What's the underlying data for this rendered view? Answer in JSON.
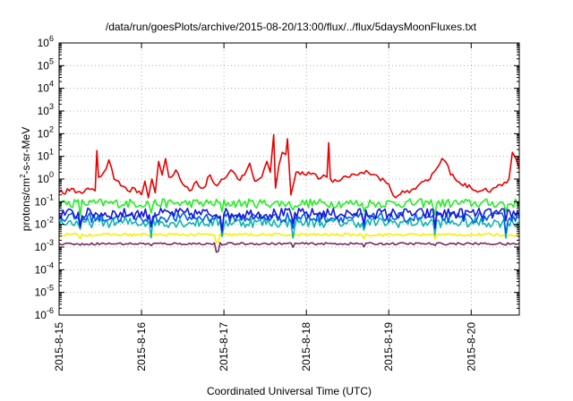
{
  "chart_data": {
    "type": "line",
    "title": "/data/run/goesPlots/archive/2015-08-20/13:00/flux/../flux/5daysMoonFluxes.txt",
    "xlabel": "Coordinated Universal Time (UTC)",
    "ylabel": {
      "pre": "protons/cm",
      "sup": "2",
      "post": "-s-sr-MeV"
    },
    "x_ticks": [
      "2015-8-15",
      "2015-8-16",
      "2015-8-17",
      "2015-8-18",
      "2015-8-19",
      "2015-8-20"
    ],
    "xlim": [
      "2015-08-15 00:00",
      "2015-08-20 14:00"
    ],
    "y_scale": "log",
    "ylim": [
      1e-06,
      1000000.0
    ],
    "y_tick_exponents": [
      -6,
      -5,
      -4,
      -3,
      -2,
      -1,
      0,
      1,
      2,
      3,
      4,
      5,
      6
    ],
    "y_tick_base": "10",
    "grid": true,
    "legend": "none",
    "series": [
      {
        "color": "#e80000",
        "points": [
          [
            "2015-08-15 00:00",
            0.25
          ],
          [
            "2015-08-15 03:00",
            0.3
          ],
          [
            "2015-08-15 06:00",
            0.28
          ],
          [
            "2015-08-15 09:00",
            0.35
          ],
          [
            "2015-08-15 10:30",
            0.3
          ],
          [
            "2015-08-15 11:00",
            18
          ],
          [
            "2015-08-15 11:30",
            1.2
          ],
          [
            "2015-08-15 13:00",
            2
          ],
          [
            "2015-08-15 14:30",
            7
          ],
          [
            "2015-08-15 16:00",
            1.0
          ],
          [
            "2015-08-15 18:00",
            0.5
          ],
          [
            "2015-08-15 20:00",
            0.3
          ],
          [
            "2015-08-15 22:00",
            0.4
          ],
          [
            "2015-08-16 00:00",
            0.2
          ],
          [
            "2015-08-16 01:00",
            0.8
          ],
          [
            "2015-08-16 02:00",
            0.15
          ],
          [
            "2015-08-16 03:00",
            1.0
          ],
          [
            "2015-08-16 04:00",
            0.25
          ],
          [
            "2015-08-16 05:00",
            6
          ],
          [
            "2015-08-16 06:00",
            1.5
          ],
          [
            "2015-08-16 07:00",
            8
          ],
          [
            "2015-08-16 08:00",
            1.2
          ],
          [
            "2015-08-16 10:00",
            2.5
          ],
          [
            "2015-08-16 12:00",
            0.6
          ],
          [
            "2015-08-16 14:00",
            0.3
          ],
          [
            "2015-08-16 16:00",
            0.8
          ],
          [
            "2015-08-16 18:00",
            0.4
          ],
          [
            "2015-08-16 20:00",
            1.5
          ],
          [
            "2015-08-16 22:00",
            0.5
          ],
          [
            "2015-08-17 00:00",
            1.0
          ],
          [
            "2015-08-17 02:00",
            2.5
          ],
          [
            "2015-08-17 04:00",
            1.0
          ],
          [
            "2015-08-17 06:00",
            1.5
          ],
          [
            "2015-08-17 07:30",
            5
          ],
          [
            "2015-08-17 09:00",
            0.8
          ],
          [
            "2015-08-17 11:00",
            1.2
          ],
          [
            "2015-08-17 12:30",
            6
          ],
          [
            "2015-08-17 13:30",
            2
          ],
          [
            "2015-08-17 14:30",
            90
          ],
          [
            "2015-08-17 15:00",
            0.4
          ],
          [
            "2015-08-17 16:00",
            4
          ],
          [
            "2015-08-17 17:00",
            15
          ],
          [
            "2015-08-17 18:00",
            12
          ],
          [
            "2015-08-17 18:30",
            60
          ],
          [
            "2015-08-17 19:30",
            0.2
          ],
          [
            "2015-08-17 21:00",
            2
          ],
          [
            "2015-08-18 00:00",
            1.5
          ],
          [
            "2015-08-18 02:00",
            1.8
          ],
          [
            "2015-08-18 03:30",
            1.0
          ],
          [
            "2015-08-18 05:00",
            1.5
          ],
          [
            "2015-08-18 06:00",
            1.2
          ],
          [
            "2015-08-18 06:30",
            40
          ],
          [
            "2015-08-18 07:00",
            1.0
          ],
          [
            "2015-08-18 09:00",
            0.8
          ],
          [
            "2015-08-18 12:00",
            1.2
          ],
          [
            "2015-08-18 15:00",
            1.5
          ],
          [
            "2015-08-18 18:00",
            2
          ],
          [
            "2015-08-18 21:00",
            1.2
          ],
          [
            "2015-08-19 00:00",
            0.6
          ],
          [
            "2015-08-19 02:00",
            0.15
          ],
          [
            "2015-08-19 04:00",
            0.3
          ],
          [
            "2015-08-19 06:00",
            0.25
          ],
          [
            "2015-08-19 09:00",
            0.6
          ],
          [
            "2015-08-19 12:00",
            1.0
          ],
          [
            "2015-08-19 14:00",
            3
          ],
          [
            "2015-08-19 15:30",
            8
          ],
          [
            "2015-08-19 16:30",
            6
          ],
          [
            "2015-08-19 18:00",
            1.5
          ],
          [
            "2015-08-19 21:00",
            0.6
          ],
          [
            "2015-08-20 00:00",
            0.4
          ],
          [
            "2015-08-20 03:00",
            0.3
          ],
          [
            "2015-08-20 06:00",
            0.35
          ],
          [
            "2015-08-20 09:00",
            0.5
          ],
          [
            "2015-08-20 11:00",
            1.0
          ],
          [
            "2015-08-20 12:00",
            15
          ],
          [
            "2015-08-20 13:00",
            8
          ],
          [
            "2015-08-20 14:00",
            3
          ]
        ]
      },
      {
        "color": "#22ee22",
        "level": 0.085,
        "spread": 0.2
      },
      {
        "color": "#1818d8",
        "level": 0.03,
        "spread": 0.24
      },
      {
        "color": "#11b4b4",
        "level": 0.012,
        "spread": 0.22
      },
      {
        "color": "#0060e0",
        "level": 0.02,
        "spread": 0.22
      },
      {
        "color": "#f4f000",
        "level": 0.0035,
        "spread": 0.06
      },
      {
        "color": "#7a2a62",
        "level": 0.0014,
        "spread": 0.05
      }
    ]
  }
}
